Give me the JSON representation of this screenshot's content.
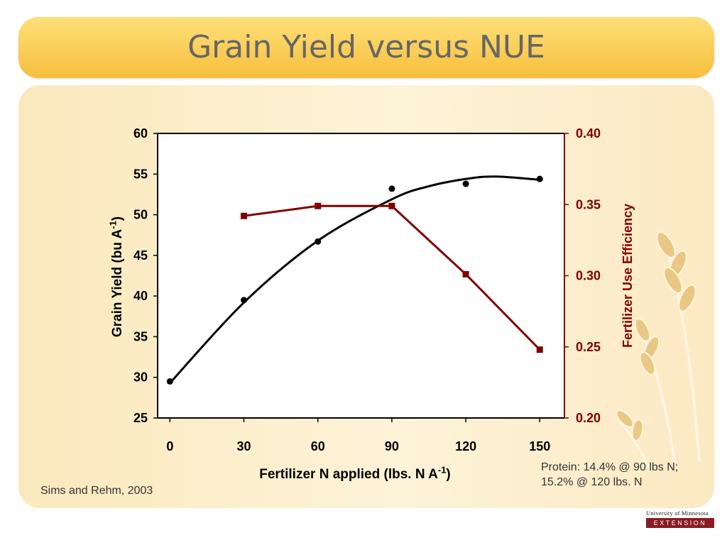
{
  "slide_title": "Grain Yield versus NUE",
  "source": "Sims and Rehm, 2003",
  "note_line1": "Protein:  14.4% @ 90 lbs N;",
  "note_line2": "15.2% @ 120 lbs. N",
  "logo": {
    "line1": "University of Minnesota",
    "line2": "EXTENSION"
  },
  "colors": {
    "yield": "#000000",
    "nue": "#800000",
    "title_bar": "#f9cc55",
    "panel": "#fcecc4"
  },
  "chart_data": {
    "type": "line",
    "xlabel_main": "Fertilizer N applied (lbs. N A",
    "xlabel_sup": "-1",
    "xlabel_end": ")",
    "ylabel_left_main": "Grain Yield (bu A",
    "ylabel_left_sup": "-1",
    "ylabel_left_end": ")",
    "ylabel_right": "Fertilizer Use Efficiency",
    "x_ticks": [
      "0",
      "30",
      "60",
      "90",
      "120",
      "150"
    ],
    "x_range": [
      -5,
      160
    ],
    "y_left_ticks": [
      "60",
      "55",
      "50",
      "45",
      "40",
      "35",
      "30",
      "25"
    ],
    "y_left_range": [
      25,
      60
    ],
    "y_right_ticks": [
      "0.40",
      "0.35",
      "0.30",
      "0.25",
      "0.20"
    ],
    "y_right_range": [
      0.2,
      0.4
    ],
    "grid": false,
    "series": [
      {
        "name": "Grain Yield",
        "axis": "left",
        "marker": "circle",
        "style": "scatter-with-quadratic-fit",
        "x": [
          0,
          30,
          60,
          90,
          120,
          150
        ],
        "y": [
          29.5,
          39.5,
          46.7,
          53.2,
          53.8,
          54.4
        ],
        "fit_curve": {
          "x": [
            0,
            30,
            60,
            90,
            105,
            120,
            132,
            150
          ],
          "y": [
            29.3,
            39.2,
            46.8,
            51.9,
            53.5,
            54.4,
            54.7,
            54.3
          ]
        }
      },
      {
        "name": "Fertilizer Use Efficiency",
        "axis": "right",
        "marker": "square",
        "style": "line",
        "x": [
          30,
          60,
          90,
          120,
          150
        ],
        "y": [
          0.342,
          0.349,
          0.349,
          0.301,
          0.248
        ]
      }
    ]
  }
}
